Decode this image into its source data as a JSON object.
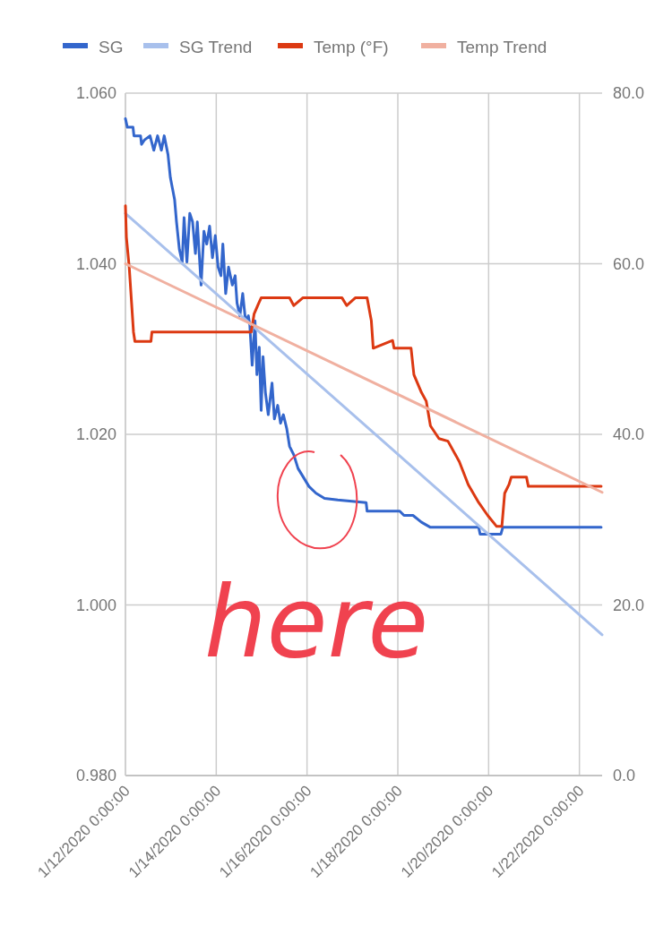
{
  "chart_data": {
    "type": "line",
    "legend": "top",
    "grid": true,
    "line_style": "solid",
    "annotations": [
      "here"
    ],
    "xlim": [
      "2020-01-12T00:00",
      "2020-01-22T12:00"
    ],
    "xticks": [
      {
        "value": "2020-01-12T00:00",
        "label": "1/12/2020 0:00:00"
      },
      {
        "value": "2020-01-14T00:00",
        "label": "1/14/2020 0:00:00"
      },
      {
        "value": "2020-01-16T00:00",
        "label": "1/16/2020 0:00:00"
      },
      {
        "value": "2020-01-18T00:00",
        "label": "1/18/2020 0:00:00"
      },
      {
        "value": "2020-01-20T00:00",
        "label": "1/20/2020 0:00:00"
      },
      {
        "value": "2020-01-22T00:00",
        "label": "1/22/2020 0:00:00"
      }
    ],
    "ylim": [
      0.98,
      1.06
    ],
    "yticks": [
      {
        "value": 0.98,
        "label": "0.980"
      },
      {
        "value": 1.0,
        "label": "1.000"
      },
      {
        "value": 1.02,
        "label": "1.020"
      },
      {
        "value": 1.04,
        "label": "1.040"
      },
      {
        "value": 1.06,
        "label": "1.060"
      }
    ],
    "y2lim": [
      0,
      80
    ],
    "y2ticks": [
      {
        "value": 0,
        "label": "0.0"
      },
      {
        "value": 20,
        "label": "20.0"
      },
      {
        "value": 40,
        "label": "40.0"
      },
      {
        "value": 60,
        "label": "60.0"
      },
      {
        "value": 80,
        "label": "80.0"
      }
    ],
    "series": [
      {
        "name": "SG",
        "color": "#3366cc",
        "x": [
          "2020-01-12T00:00",
          "2020-01-12T01:00",
          "2020-01-12T04:00",
          "2020-01-12T04:30",
          "2020-01-12T08:00",
          "2020-01-12T08:30",
          "2020-01-12T10:00",
          "2020-01-12T13:00",
          "2020-01-12T15:00",
          "2020-01-12T17:00",
          "2020-01-12T19:00",
          "2020-01-12T20:30",
          "2020-01-12T22:30",
          "2020-01-12T23:45",
          "2020-01-13T02:00",
          "2020-01-13T03:00",
          "2020-01-13T04:30",
          "2020-01-13T06:00",
          "2020-01-13T07:00",
          "2020-01-13T08:30",
          "2020-01-13T10:00",
          "2020-01-13T11:30",
          "2020-01-13T13:00",
          "2020-01-13T14:00",
          "2020-01-13T16:00",
          "2020-01-13T17:30",
          "2020-01-13T19:00",
          "2020-01-13T20:30",
          "2020-01-13T22:00",
          "2020-01-13T23:30",
          "2020-01-14T01:00",
          "2020-01-14T02:30",
          "2020-01-14T03:30",
          "2020-01-14T05:00",
          "2020-01-14T06:30",
          "2020-01-14T08:30",
          "2020-01-14T10:00",
          "2020-01-14T11:00",
          "2020-01-14T12:30",
          "2020-01-14T14:00",
          "2020-01-14T15:30",
          "2020-01-14T17:00",
          "2020-01-14T17:45",
          "2020-01-14T19:00",
          "2020-01-14T20:30",
          "2020-01-14T21:30",
          "2020-01-14T22:45",
          "2020-01-14T23:45",
          "2020-01-15T00:45",
          "2020-01-15T02:00",
          "2020-01-15T03:30",
          "2020-01-15T05:30",
          "2020-01-15T06:45",
          "2020-01-15T08:30",
          "2020-01-15T10:00",
          "2020-01-15T11:30",
          "2020-01-15T13:15",
          "2020-01-15T14:45",
          "2020-01-15T17:00",
          "2020-01-15T19:15",
          "2020-01-15T22:00",
          "2020-01-16T01:00",
          "2020-01-16T04:45",
          "2020-01-16T09:15",
          "2020-01-16T16:15",
          "2020-01-17T07:15",
          "2020-01-17T07:45",
          "2020-01-18T01:00",
          "2020-01-18T03:15",
          "2020-01-18T08:00",
          "2020-01-18T12:30",
          "2020-01-18T17:15",
          "2020-01-19T18:45",
          "2020-01-19T19:30",
          "2020-01-20T06:30",
          "2020-01-20T07:30",
          "2020-01-22T11:30"
        ],
        "values": [
          1.057,
          1.056,
          1.056,
          1.055,
          1.055,
          1.054,
          1.0545,
          1.055,
          1.0533,
          1.055,
          1.0533,
          1.055,
          1.0528,
          1.0501,
          1.0475,
          1.0449,
          1.0417,
          1.0402,
          1.0454,
          1.0402,
          1.0459,
          1.0449,
          1.0412,
          1.0449,
          1.0375,
          1.0438,
          1.0423,
          1.0444,
          1.0407,
          1.0433,
          1.0396,
          1.0386,
          1.0423,
          1.0365,
          1.0396,
          1.0375,
          1.0386,
          1.0354,
          1.0339,
          1.0365,
          1.0333,
          1.0339,
          1.0328,
          1.0281,
          1.0333,
          1.027,
          1.0302,
          1.0228,
          1.0291,
          1.0249,
          1.0223,
          1.026,
          1.0218,
          1.0234,
          1.0213,
          1.0223,
          1.0207,
          1.0186,
          1.0176,
          1.016,
          1.015,
          1.0139,
          1.0131,
          1.0125,
          1.0123,
          1.012,
          1.011,
          1.011,
          1.0105,
          1.0105,
          1.0097,
          1.0091,
          1.0091,
          1.0083,
          1.0083,
          1.0091,
          1.0091
        ]
      },
      {
        "name": "SG Trend",
        "color": "#a8c0ec",
        "x": [
          "2020-01-12T00:00",
          "2020-01-22T12:00"
        ],
        "values": [
          1.0459,
          0.9965
        ]
      },
      {
        "name": "Temp (°F)",
        "color": "#dc3912",
        "axis": "y2",
        "x": [
          "2020-01-12T00:00",
          "2020-01-12T00:30",
          "2020-01-12T02:00",
          "2020-01-12T03:15",
          "2020-01-12T04:15",
          "2020-01-12T05:00",
          "2020-01-12T13:30",
          "2020-01-12T14:00",
          "2020-01-13T16:00",
          "2020-01-14T18:30",
          "2020-01-14T20:00",
          "2020-01-14T22:30",
          "2020-01-14T23:45",
          "2020-01-15T14:45",
          "2020-01-15T17:00",
          "2020-01-15T21:45",
          "2020-01-16T18:30",
          "2020-01-16T21:00",
          "2020-01-17T01:30",
          "2020-01-17T07:45",
          "2020-01-17T10:00",
          "2020-01-17T11:00",
          "2020-01-17T21:15",
          "2020-01-17T22:00",
          "2020-01-18T07:00",
          "2020-01-18T08:30",
          "2020-01-18T12:30",
          "2020-01-18T15:00",
          "2020-01-18T17:15",
          "2020-01-18T21:45",
          "2020-01-19T02:30",
          "2020-01-19T08:30",
          "2020-01-19T13:15",
          "2020-01-19T18:45",
          "2020-01-19T23:30",
          "2020-01-20T04:15",
          "2020-01-20T07:00",
          "2020-01-20T08:30",
          "2020-01-20T10:45",
          "2020-01-20T12:00",
          "2020-01-20T20:00",
          "2020-01-20T21:00",
          "2020-01-22T11:30"
        ],
        "values": [
          66.8,
          63.1,
          59.6,
          55.4,
          52.0,
          50.9,
          50.9,
          52.0,
          52.0,
          52.0,
          54.1,
          55.4,
          56.0,
          56.0,
          55.1,
          56.0,
          56.0,
          55.1,
          56.0,
          56.0,
          53.3,
          50.1,
          51.0,
          50.1,
          50.1,
          47.0,
          44.9,
          43.9,
          41.0,
          39.5,
          39.2,
          36.8,
          34.1,
          32.0,
          30.5,
          29.2,
          29.2,
          33.1,
          34.1,
          35.0,
          35.0,
          33.9,
          33.9
        ]
      },
      {
        "name": "Temp Trend",
        "color": "#f0b0a0",
        "axis": "y2",
        "x": [
          "2020-01-12T00:00",
          "2020-01-22T12:00"
        ],
        "values": [
          60.0,
          33.2
        ]
      }
    ]
  }
}
